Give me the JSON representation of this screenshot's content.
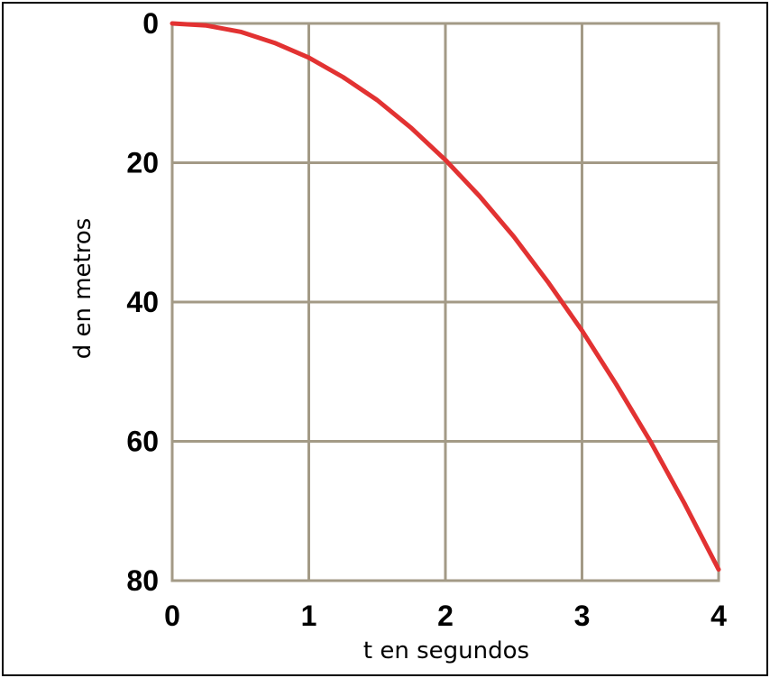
{
  "colors": {
    "grid": "#a39a86",
    "curve": "#e23232",
    "background": "#ffffff",
    "text": "#000000"
  },
  "chart_data": {
    "type": "line",
    "title": "",
    "xlabel": "t en segundos",
    "ylabel": "d en metros",
    "xlim": [
      0,
      4
    ],
    "ylim": [
      0,
      80
    ],
    "y_inverted": true,
    "grid": true,
    "x_ticks": [
      "0",
      "1",
      "2",
      "3",
      "4"
    ],
    "y_ticks": [
      "0",
      "20",
      "40",
      "60",
      "80"
    ],
    "series": [
      {
        "x": [
          0,
          0.25,
          0.5,
          0.75,
          1,
          1.25,
          1.5,
          1.75,
          2,
          2.25,
          2.5,
          2.75,
          3,
          3.25,
          3.5,
          3.75,
          4
        ],
        "y": [
          0,
          0.3,
          1.2,
          2.8,
          4.9,
          7.7,
          11.0,
          15.0,
          19.6,
          24.8,
          30.6,
          37.1,
          44.1,
          51.8,
          60.0,
          68.9,
          78.4
        ]
      }
    ]
  }
}
